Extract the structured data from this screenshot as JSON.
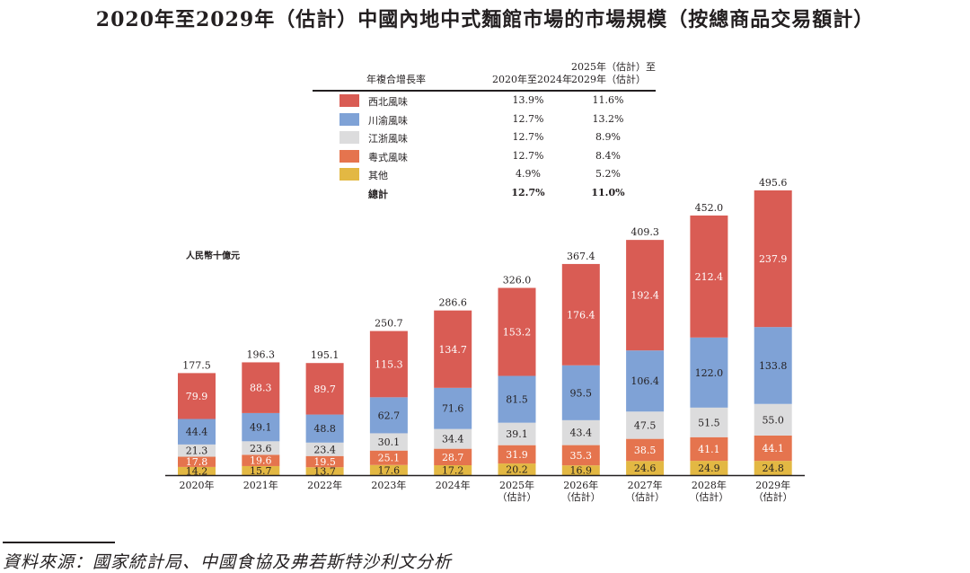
{
  "title": "2020年至2029年（估計）中國內地中式麵館市場的市場規模（按總商品交易額計）",
  "legend": {
    "header_label": "年複合增長率",
    "col1_header": "2020年至2024年",
    "col2_header_line1": "2025年（估計）至",
    "col2_header_line2": "2029年（估計）",
    "rows": [
      {
        "name": "西北風味",
        "color": "#d95c54",
        "cagr_2020_2024": "13.9%",
        "cagr_2025_2029": "11.6%"
      },
      {
        "name": "川渝風味",
        "color": "#7fa2d6",
        "cagr_2020_2024": "12.7%",
        "cagr_2025_2029": "13.2%"
      },
      {
        "name": "江浙風味",
        "color": "#dcdcdd",
        "cagr_2020_2024": "12.7%",
        "cagr_2025_2029": "8.9%"
      },
      {
        "name": "粵式風味",
        "color": "#e5744e",
        "cagr_2020_2024": "12.7%",
        "cagr_2025_2029": "8.4%"
      },
      {
        "name": "其他",
        "color": "#e3b843",
        "cagr_2020_2024": "4.9%",
        "cagr_2025_2029": "5.2%"
      }
    ],
    "total": {
      "name": "總計",
      "cagr_2020_2024": "12.7%",
      "cagr_2025_2029": "11.0%"
    }
  },
  "unit_label": "人民幣十億元",
  "source": "資料來源：國家統計局、中國食協及弗若斯特沙利文分析",
  "chart_data": {
    "type": "bar",
    "stacked": true,
    "title": "2020年至2029年（估計）中國內地中式麵館市場的市場規模（按總商品交易額計）",
    "ylabel": "人民幣十億元",
    "xlabel": "",
    "categories": [
      "2020年",
      "2021年",
      "2022年",
      "2023年",
      "2024年",
      "2025年（估計）",
      "2026年（估計）",
      "2027年（估計）",
      "2028年（估計）",
      "2029年（估計）"
    ],
    "category_lines": [
      [
        "2020年"
      ],
      [
        "2021年"
      ],
      [
        "2022年"
      ],
      [
        "2023年"
      ],
      [
        "2024年"
      ],
      [
        "2025年",
        "（估計）"
      ],
      [
        "2026年",
        "（估計）"
      ],
      [
        "2027年",
        "（估計）"
      ],
      [
        "2028年",
        "（估計）"
      ],
      [
        "2029年",
        "（估計）"
      ]
    ],
    "series": [
      {
        "name": "其他",
        "color": "#e3b843",
        "label_color": "#231f20",
        "values": [
          14.2,
          15.7,
          13.7,
          17.6,
          17.2,
          20.2,
          16.9,
          24.6,
          24.9,
          24.8
        ]
      },
      {
        "name": "粵式風味",
        "color": "#e5744e",
        "label_color": "#ffffff",
        "values": [
          17.8,
          19.6,
          19.5,
          25.1,
          28.7,
          31.9,
          35.3,
          38.5,
          41.1,
          44.1
        ]
      },
      {
        "name": "江浙風味",
        "color": "#dcdcdd",
        "label_color": "#231f20",
        "values": [
          21.3,
          23.6,
          23.4,
          30.1,
          34.4,
          39.1,
          43.4,
          47.5,
          51.5,
          55.0
        ]
      },
      {
        "name": "川渝風味",
        "color": "#7fa2d6",
        "label_color": "#231f20",
        "values": [
          44.4,
          49.1,
          48.8,
          62.7,
          71.6,
          81.5,
          95.5,
          106.4,
          122.0,
          133.8
        ]
      },
      {
        "name": "西北風味",
        "color": "#d95c54",
        "label_color": "#ffffff",
        "values": [
          79.9,
          88.3,
          89.7,
          115.3,
          134.7,
          153.2,
          176.4,
          192.4,
          212.4,
          237.9
        ]
      }
    ],
    "totals": [
      177.5,
      196.3,
      195.1,
      250.7,
      286.6,
      326.0,
      367.4,
      409.3,
      452.0,
      495.6
    ],
    "ylim": [
      0,
      495.6
    ],
    "grid": false,
    "legend_position": "top-center"
  }
}
